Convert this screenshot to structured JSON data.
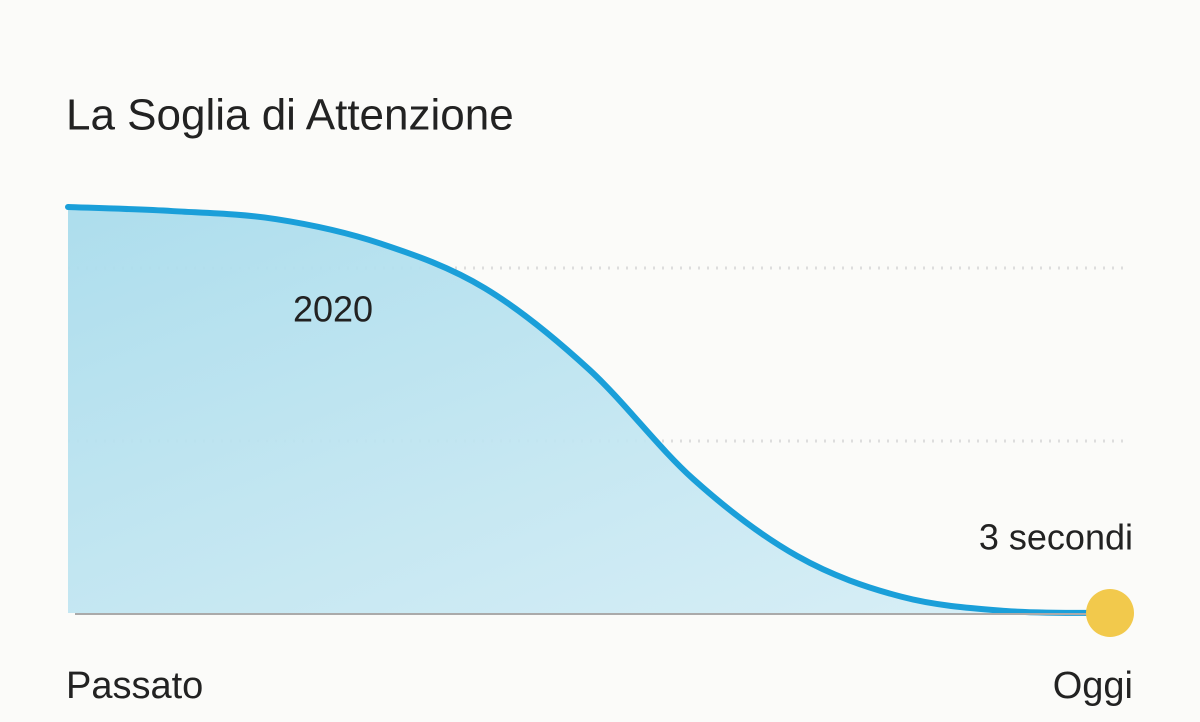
{
  "chart_data": {
    "type": "area",
    "title": "La Soglia di Attenzione",
    "categories": [
      "Passato",
      null,
      null,
      null,
      null,
      null,
      null,
      null,
      null,
      null,
      "Oggi"
    ],
    "values": [
      100,
      99,
      97,
      91,
      80,
      60,
      33,
      14,
      4,
      0.5,
      0
    ],
    "ylim": [
      0,
      100
    ],
    "color": "#1a9fd9",
    "fill": "#a9dcec",
    "marker_color": "#f2c94c",
    "annotations": [
      "2020",
      "3 secondi"
    ]
  }
}
